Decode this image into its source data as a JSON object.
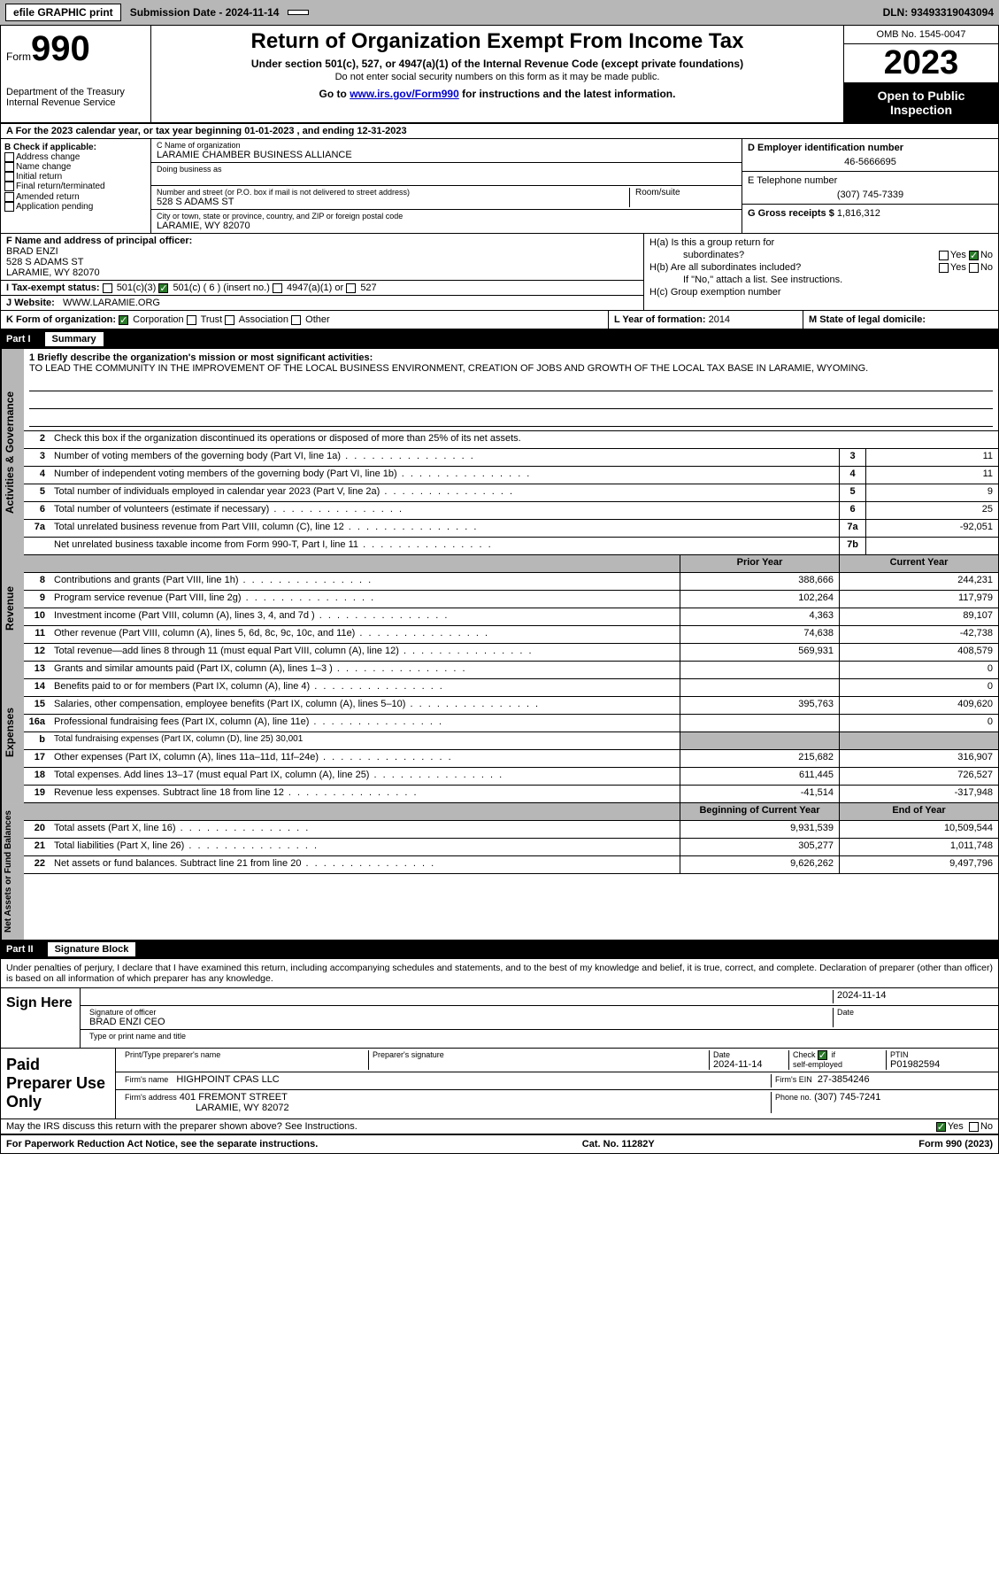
{
  "topbar": {
    "efile": "efile GRAPHIC print",
    "submission": "Submission Date - 2024-11-14",
    "dln": "DLN: 93493319043094"
  },
  "header": {
    "form_prefix": "Form",
    "form_no": "990",
    "dept": "Department of the Treasury\nInternal Revenue Service",
    "title": "Return of Organization Exempt From Income Tax",
    "sub1": "Under section 501(c), 527, or 4947(a)(1) of the Internal Revenue Code (except private foundations)",
    "sub2": "Do not enter social security numbers on this form as it may be made public.",
    "sub3_pre": "Go to ",
    "sub3_link": "www.irs.gov/Form990",
    "sub3_post": " for instructions and the latest information.",
    "omb": "OMB No. 1545-0047",
    "year": "2023",
    "inspection": "Open to Public Inspection"
  },
  "row_a": "A  For the 2023 calendar year, or tax year beginning 01-01-2023   , and ending 12-31-2023",
  "section_b": {
    "label": "B Check if applicable:",
    "opts": [
      "Address change",
      "Name change",
      "Initial return",
      "Final return/terminated",
      "Amended return",
      "Application pending"
    ]
  },
  "section_c": {
    "name_lbl": "C Name of organization",
    "name": "LARAMIE CHAMBER BUSINESS ALLIANCE",
    "dba_lbl": "Doing business as",
    "street_lbl": "Number and street (or P.O. box if mail is not delivered to street address)",
    "room_lbl": "Room/suite",
    "street": "528 S ADAMS ST",
    "city_lbl": "City or town, state or province, country, and ZIP or foreign postal code",
    "city": "LARAMIE, WY  82070"
  },
  "section_de": {
    "ein_lbl": "D Employer identification number",
    "ein": "46-5666695",
    "tel_lbl": "E Telephone number",
    "tel": "(307) 745-7339",
    "gross_lbl": "G Gross receipts $",
    "gross": "1,816,312"
  },
  "section_f": {
    "lbl": "F  Name and address of principal officer:",
    "name": "BRAD ENZI",
    "addr1": "528 S ADAMS ST",
    "addr2": "LARAMIE, WY  82070"
  },
  "section_i": {
    "lbl": "I   Tax-exempt status:",
    "o1": "501(c)(3)",
    "o2": "501(c) ( 6 ) (insert no.)",
    "o3": "4947(a)(1) or",
    "o4": "527"
  },
  "section_j": {
    "lbl": "J   Website:",
    "val": "WWW.LARAMIE.ORG"
  },
  "section_h": {
    "ha": "H(a)  Is this a group return for",
    "ha2": "subordinates?",
    "hb": "H(b)  Are all subordinates included?",
    "hb2": "If \"No,\" attach a list. See instructions.",
    "hc": "H(c)  Group exemption number",
    "yes": "Yes",
    "no": "No"
  },
  "row_k": {
    "lbl": "K Form of organization:",
    "o1": "Corporation",
    "o2": "Trust",
    "o3": "Association",
    "o4": "Other"
  },
  "row_l": {
    "lbl": "L Year of formation:",
    "val": "2014"
  },
  "row_m": {
    "lbl": "M State of legal domicile:"
  },
  "part1": {
    "num": "Part I",
    "title": "Summary"
  },
  "vtabs": {
    "gov": "Activities & Governance",
    "rev": "Revenue",
    "exp": "Expenses",
    "net": "Net Assets or\nFund Balances"
  },
  "mission": {
    "lbl": "1   Briefly describe the organization's mission or most significant activities:",
    "text": "TO LEAD THE COMMUNITY IN THE IMPROVEMENT OF THE LOCAL BUSINESS ENVIRONMENT, CREATION OF JOBS AND GROWTH OF THE LOCAL TAX BASE IN LARAMIE, WYOMING."
  },
  "gov_rows": [
    {
      "n": "2",
      "d": "Check this box   if the organization discontinued its operations or disposed of more than 25% of its net assets."
    },
    {
      "n": "3",
      "d": "Number of voting members of the governing body (Part VI, line 1a)",
      "box": "3",
      "val": "11"
    },
    {
      "n": "4",
      "d": "Number of independent voting members of the governing body (Part VI, line 1b)",
      "box": "4",
      "val": "11"
    },
    {
      "n": "5",
      "d": "Total number of individuals employed in calendar year 2023 (Part V, line 2a)",
      "box": "5",
      "val": "9"
    },
    {
      "n": "6",
      "d": "Total number of volunteers (estimate if necessary)",
      "box": "6",
      "val": "25"
    },
    {
      "n": "7a",
      "d": "Total unrelated business revenue from Part VIII, column (C), line 12",
      "box": "7a",
      "val": "-92,051"
    },
    {
      "n": "",
      "d": "Net unrelated business taxable income from Form 990-T, Part I, line 11",
      "box": "7b",
      "val": ""
    }
  ],
  "two_col_hdr": {
    "prior": "Prior Year",
    "current": "Current Year"
  },
  "rev_rows": [
    {
      "n": "8",
      "d": "Contributions and grants (Part VIII, line 1h)",
      "p": "388,666",
      "c": "244,231"
    },
    {
      "n": "9",
      "d": "Program service revenue (Part VIII, line 2g)",
      "p": "102,264",
      "c": "117,979"
    },
    {
      "n": "10",
      "d": "Investment income (Part VIII, column (A), lines 3, 4, and 7d )",
      "p": "4,363",
      "c": "89,107"
    },
    {
      "n": "11",
      "d": "Other revenue (Part VIII, column (A), lines 5, 6d, 8c, 9c, 10c, and 11e)",
      "p": "74,638",
      "c": "-42,738"
    },
    {
      "n": "12",
      "d": "Total revenue—add lines 8 through 11 (must equal Part VIII, column (A), line 12)",
      "p": "569,931",
      "c": "408,579"
    }
  ],
  "exp_rows": [
    {
      "n": "13",
      "d": "Grants and similar amounts paid (Part IX, column (A), lines 1–3 )",
      "p": "",
      "c": "0"
    },
    {
      "n": "14",
      "d": "Benefits paid to or for members (Part IX, column (A), line 4)",
      "p": "",
      "c": "0"
    },
    {
      "n": "15",
      "d": "Salaries, other compensation, employee benefits (Part IX, column (A), lines 5–10)",
      "p": "395,763",
      "c": "409,620"
    },
    {
      "n": "16a",
      "d": "Professional fundraising fees (Part IX, column (A), line 11e)",
      "p": "",
      "c": "0"
    },
    {
      "n": "b",
      "d": "Total fundraising expenses (Part IX, column (D), line 25) 30,001",
      "gray": true
    },
    {
      "n": "17",
      "d": "Other expenses (Part IX, column (A), lines 11a–11d, 11f–24e)",
      "p": "215,682",
      "c": "316,907"
    },
    {
      "n": "18",
      "d": "Total expenses. Add lines 13–17 (must equal Part IX, column (A), line 25)",
      "p": "611,445",
      "c": "726,527"
    },
    {
      "n": "19",
      "d": "Revenue less expenses. Subtract line 18 from line 12",
      "p": "-41,514",
      "c": "-317,948"
    }
  ],
  "net_hdr": {
    "begin": "Beginning of Current Year",
    "end": "End of Year"
  },
  "net_rows": [
    {
      "n": "20",
      "d": "Total assets (Part X, line 16)",
      "p": "9,931,539",
      "c": "10,509,544"
    },
    {
      "n": "21",
      "d": "Total liabilities (Part X, line 26)",
      "p": "305,277",
      "c": "1,011,748"
    },
    {
      "n": "22",
      "d": "Net assets or fund balances. Subtract line 21 from line 20",
      "p": "9,626,262",
      "c": "9,497,796"
    }
  ],
  "part2": {
    "num": "Part II",
    "title": "Signature Block"
  },
  "penalty": "Under penalties of perjury, I declare that I have examined this return, including accompanying schedules and statements, and to the best of my knowledge and belief, it is true, correct, and complete. Declaration of preparer (other than officer) is based on all information of which preparer has any knowledge.",
  "sign": {
    "here": "Sign Here",
    "date": "2024-11-14",
    "sig_lbl": "Signature of officer",
    "officer": "BRAD ENZI CEO",
    "type_lbl": "Type or print name and title",
    "date_lbl": "Date"
  },
  "paid": {
    "lbl": "Paid Preparer Use Only",
    "print_lbl": "Print/Type preparer's name",
    "sig_lbl": "Preparer's signature",
    "date_lbl": "Date",
    "date": "2024-11-14",
    "check_lbl": "Check",
    "if_lbl": "if",
    "self_lbl": "self-employed",
    "ptin_lbl": "PTIN",
    "ptin": "P01982594",
    "firm_name_lbl": "Firm's name",
    "firm_name": "HIGHPOINT CPAS LLC",
    "firm_ein_lbl": "Firm's EIN",
    "firm_ein": "27-3854246",
    "firm_addr_lbl": "Firm's address",
    "firm_addr1": "401 FREMONT STREET",
    "firm_addr2": "LARAMIE, WY  82072",
    "phone_lbl": "Phone no.",
    "phone": "(307) 745-7241"
  },
  "discuss": {
    "q": "May the IRS discuss this return with the preparer shown above? See Instructions.",
    "yes": "Yes",
    "no": "No"
  },
  "footer": {
    "left": "For Paperwork Reduction Act Notice, see the separate instructions.",
    "mid": "Cat. No. 11282Y",
    "right": "Form 990 (2023)"
  }
}
